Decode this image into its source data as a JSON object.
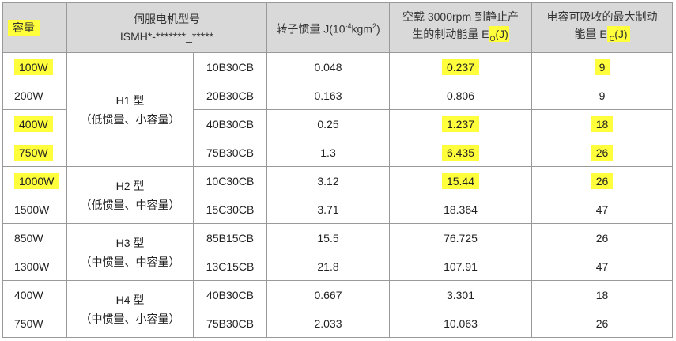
{
  "table": {
    "header": {
      "capacity": "容量",
      "model": "伺服电机型号",
      "model_code": "ISMH*-*******_*****",
      "inertia": [
        "转子惯量 J(10",
        "-4",
        "kgm",
        "2",
        ")"
      ],
      "energy": [
        "空载 3000rpm 到静止产",
        "生的制动能量 E",
        "O",
        "(J)"
      ],
      "capacitor": [
        "电容可吸收的最大制动",
        "能量 E",
        "C",
        "(J)"
      ]
    },
    "groups": [
      {
        "type": "H1 型",
        "desc": "（低惯量、小容量）",
        "rows": [
          [
            "100W",
            "10B30CB",
            "0.048",
            "0.237",
            "9"
          ],
          [
            "200W",
            "20B30CB",
            "0.163",
            "0.806",
            "9"
          ],
          [
            "400W",
            "40B30CB",
            "0.25",
            "1.237",
            "18"
          ],
          [
            "750W",
            "75B30CB",
            "1.3",
            "6.435",
            "26"
          ]
        ]
      },
      {
        "type": "H2 型",
        "desc": "（低惯量、中容量）",
        "rows": [
          [
            "1000W",
            "10C30CB",
            "3.12",
            "15.44",
            "26"
          ],
          [
            "1500W",
            "15C30CB",
            "3.71",
            "18.364",
            "47"
          ]
        ]
      },
      {
        "type": "H3 型",
        "desc": "（中惯量、中容量）",
        "rows": [
          [
            "850W",
            "85B15CB",
            "15.5",
            "76.725",
            "26"
          ],
          [
            "1300W",
            "13C15CB",
            "21.8",
            "107.91",
            "47"
          ]
        ]
      },
      {
        "type": "H4 型",
        "desc": "（中惯量、小容量）",
        "rows": [
          [
            "400W",
            "40B30CB",
            "0.667",
            "3.301",
            "18"
          ],
          [
            "750W",
            "75B30CB",
            "2.033",
            "10.063",
            "26"
          ]
        ]
      }
    ]
  }
}
